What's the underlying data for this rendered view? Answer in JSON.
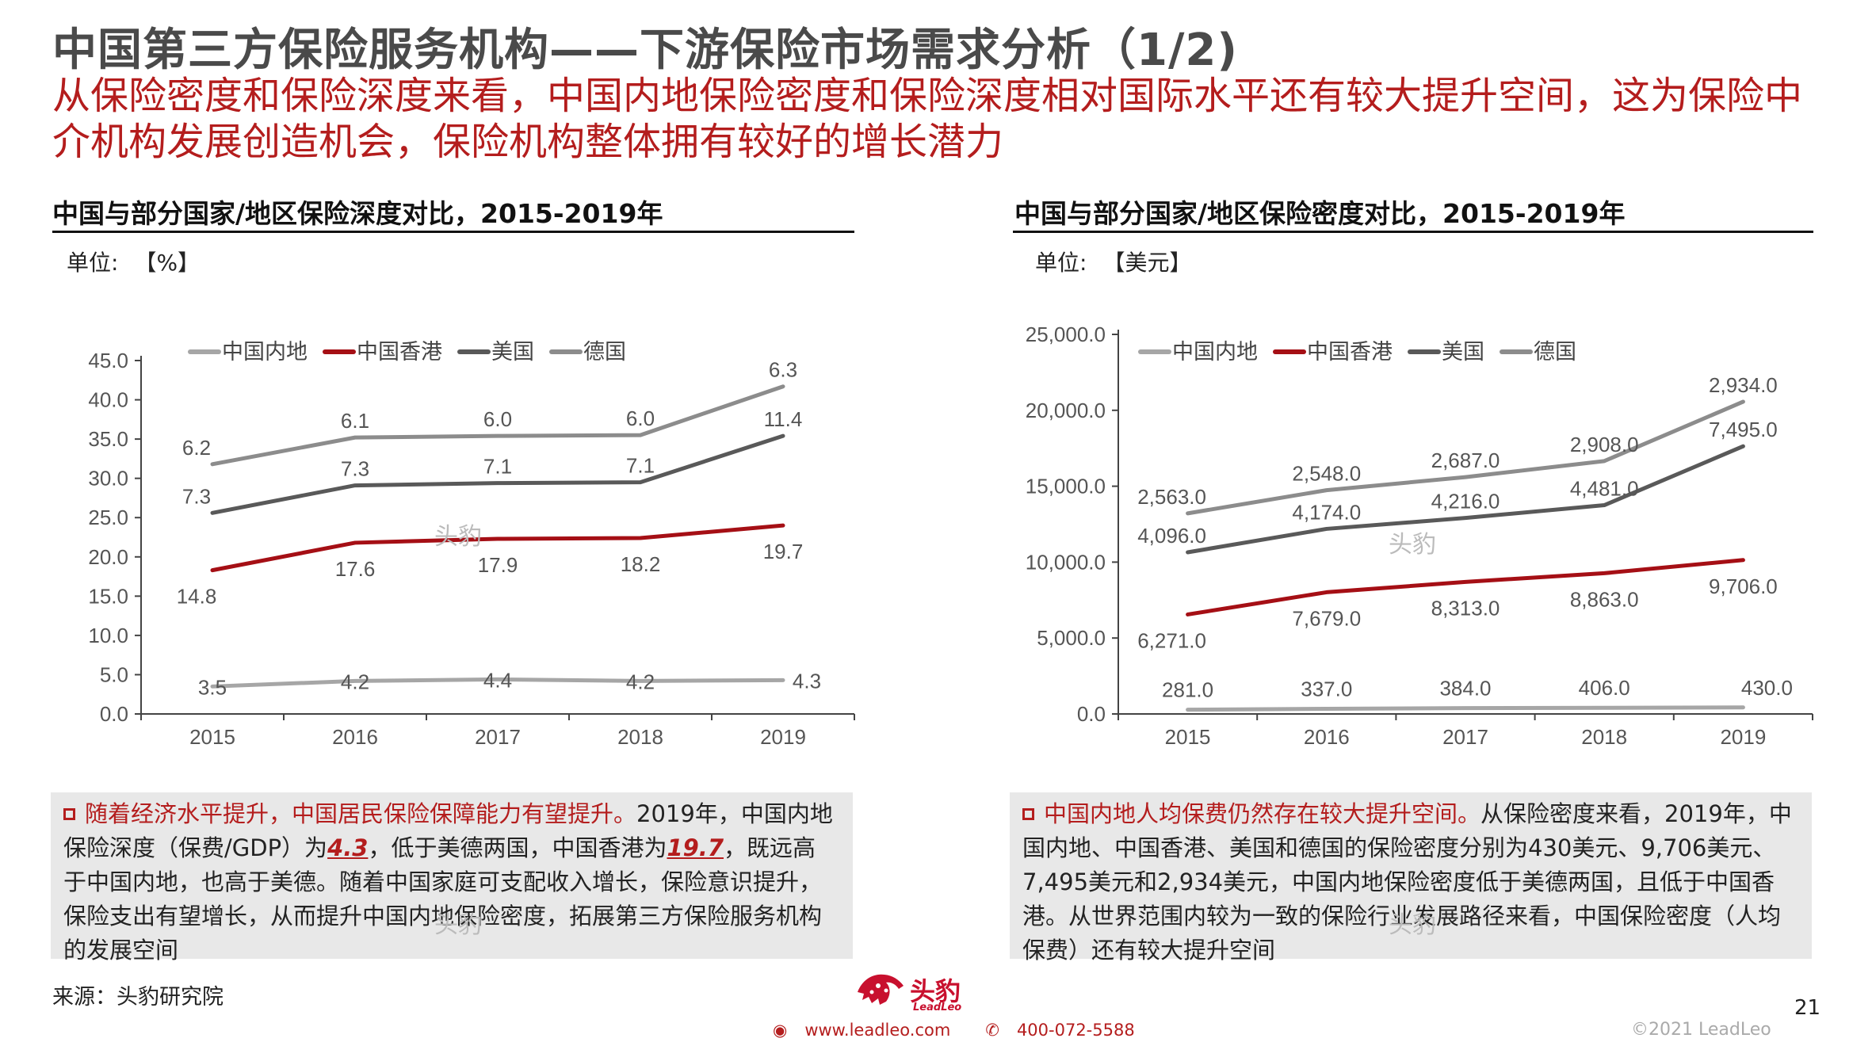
{
  "header": {
    "title": "中国第三方保险服务机构——下游保险市场需求分析（1/2)",
    "subtitle": "从保险密度和保险深度来看，中国内地保险密度和保险深度相对国际水平还有较大提升空间，这为保险中介机构发展创造机会，保险机构整体拥有较好的增长潜力"
  },
  "left_panel": {
    "title": "中国与部分国家/地区保险深度对比，2015-2019年",
    "unit_label": "单位:",
    "unit_value": "【%】",
    "note": {
      "highlight": "随着经济水平提升，中国居民保险保障能力有望提升。",
      "part1": "2019年，中国内地保险深度（保费/GDP）为",
      "value1": "4.3",
      "part2": "，低于美德两国，中国香港为",
      "value2": "19.7",
      "part3": "，既远高于中国内地，也高于美德。随着中国家庭可支配收入增长，保险意识提升，保险支出有望增长，从而提升中国内地保险密度，拓展第三方保险服务机构的发展空间"
    }
  },
  "right_panel": {
    "title": "中国与部分国家/地区保险密度对比，2015-2019年",
    "unit_label": "单位:",
    "unit_value": "【美元】",
    "note": {
      "highlight": "中国内地人均保费仍然存在较大提升空间。",
      "text": "从保险密度来看，2019年，中国内地、中国香港、美国和德国的保险密度分别为430美元、9,706美元、7,495美元和2,934美元，中国内地保险密度低于美德两国，且低于中国香港。从世界范围内较为一致的保险行业发展路径来看，中国保险密度（人均保费）还有较大提升空间"
    }
  },
  "watermark": "头豹",
  "footer": {
    "source": "来源：头豹研究院",
    "page_number": "21",
    "copyright": "©2021 LeadLeo",
    "website": "www.leadleo.com",
    "phone": "400-072-5588",
    "logo_text": "头豹",
    "logo_subtext": "LeadLeo"
  },
  "colors": {
    "mainland": "#a6a6a6",
    "hongkong": "#a50f15",
    "usa": "#595959",
    "germany": "#8c8c8c",
    "accent": "#b41d1d"
  },
  "chart_data": [
    {
      "type": "line",
      "title": "中国与部分国家/地区保险深度对比，2015-2019年",
      "unit": "%",
      "x": [
        "2015",
        "2016",
        "2017",
        "2018",
        "2019"
      ],
      "ylim": [
        0,
        45
      ],
      "yticks": [
        "0.0",
        "5.0",
        "10.0",
        "15.0",
        "20.0",
        "25.0",
        "30.0",
        "35.0",
        "40.0",
        "45.0"
      ],
      "stacked": true,
      "legend_position": "top",
      "series": [
        {
          "name": "中国内地",
          "color": "#a6a6a6",
          "values": [
            3.5,
            4.2,
            4.4,
            4.2,
            4.3
          ]
        },
        {
          "name": "中国香港",
          "color": "#a50f15",
          "values": [
            14.8,
            17.6,
            17.9,
            18.2,
            19.7
          ]
        },
        {
          "name": "美国",
          "color": "#595959",
          "values": [
            7.3,
            7.3,
            7.1,
            7.1,
            11.4
          ]
        },
        {
          "name": "德国",
          "color": "#8c8c8c",
          "values": [
            6.2,
            6.1,
            6.0,
            6.0,
            6.3
          ]
        }
      ]
    },
    {
      "type": "line",
      "title": "中国与部分国家/地区保险密度对比，2015-2019年",
      "unit": "美元",
      "x": [
        "2015",
        "2016",
        "2017",
        "2018",
        "2019"
      ],
      "ylim": [
        0,
        25000
      ],
      "yticks": [
        "0.0",
        "5,000.0",
        "10,000.0",
        "15,000.0",
        "20,000.0",
        "25,000.0"
      ],
      "stacked": true,
      "legend_position": "top",
      "series": [
        {
          "name": "中国内地",
          "color": "#a6a6a6",
          "values": [
            281,
            337,
            384,
            406,
            430
          ]
        },
        {
          "name": "中国香港",
          "color": "#a50f15",
          "values": [
            6271,
            7679,
            8313,
            8863,
            9706
          ]
        },
        {
          "name": "美国",
          "color": "#595959",
          "values": [
            4096,
            4174,
            4216,
            4481,
            7495
          ]
        },
        {
          "name": "德国",
          "color": "#8c8c8c",
          "values": [
            2563,
            2548,
            2687,
            2908,
            2934
          ]
        }
      ]
    }
  ]
}
